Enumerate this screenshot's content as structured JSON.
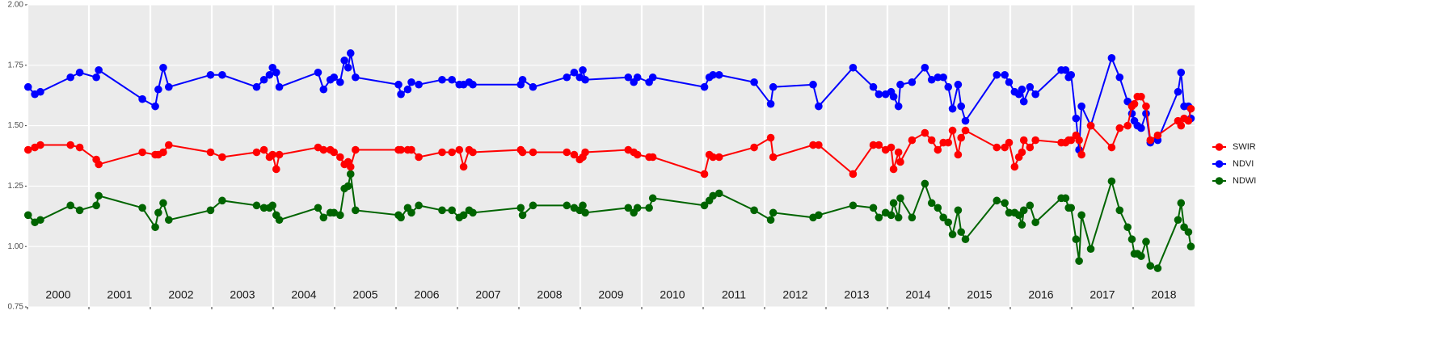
{
  "chart_data": {
    "type": "line",
    "x": [
      2000.01,
      2000.12,
      2000.21,
      2000.7,
      2000.85,
      2001.12,
      2001.16,
      2001.87,
      2002.08,
      2002.13,
      2002.21,
      2002.3,
      2002.98,
      2003.17,
      2003.73,
      2003.85,
      2003.94,
      2003.99,
      2004.05,
      2004.1,
      2004.73,
      2004.82,
      2004.93,
      2004.99,
      2005.09,
      2005.16,
      2005.22,
      2005.26,
      2005.34,
      2006.04,
      2006.08,
      2006.19,
      2006.25,
      2006.37,
      2006.75,
      2006.91,
      2007.03,
      2007.1,
      2007.19,
      2007.25,
      2008.03,
      2008.06,
      2008.23,
      2008.78,
      2008.9,
      2008.99,
      2009.04,
      2009.08,
      2009.78,
      2009.87,
      2009.93,
      2010.12,
      2010.18,
      2011.02,
      2011.1,
      2011.16,
      2011.26,
      2011.83,
      2012.1,
      2012.14,
      2012.79,
      2012.88,
      2013.44,
      2013.77,
      2013.86,
      2013.97,
      2014.06,
      2014.1,
      2014.18,
      2014.21,
      2014.4,
      2014.61,
      2014.72,
      2014.82,
      2014.91,
      2014.99,
      2015.06,
      2015.15,
      2015.2,
      2015.27,
      2015.78,
      2015.91,
      2015.98,
      2016.07,
      2016.14,
      2016.19,
      2016.22,
      2016.32,
      2016.41,
      2016.83,
      2016.9,
      2016.95,
      2016.99,
      2017.07,
      2017.12,
      2017.16,
      2017.31,
      2017.65,
      2017.78,
      2017.91,
      2017.98,
      2018.02,
      2018.07,
      2018.13,
      2018.21,
      2018.28,
      2018.4,
      2018.73,
      2018.78,
      2018.83,
      2018.9,
      2018.94
    ],
    "series": [
      {
        "name": "SWIR",
        "color": "#ff0000",
        "values": [
          1.4,
          1.41,
          1.42,
          1.42,
          1.41,
          1.36,
          1.34,
          1.39,
          1.38,
          1.38,
          1.39,
          1.42,
          1.39,
          1.37,
          1.39,
          1.4,
          1.37,
          1.38,
          1.32,
          1.38,
          1.41,
          1.4,
          1.4,
          1.39,
          1.37,
          1.34,
          1.35,
          1.33,
          1.4,
          1.4,
          1.4,
          1.4,
          1.4,
          1.37,
          1.39,
          1.39,
          1.4,
          1.33,
          1.4,
          1.39,
          1.4,
          1.39,
          1.39,
          1.39,
          1.38,
          1.36,
          1.37,
          1.39,
          1.4,
          1.39,
          1.38,
          1.37,
          1.37,
          1.3,
          1.38,
          1.37,
          1.37,
          1.41,
          1.45,
          1.37,
          1.42,
          1.42,
          1.3,
          1.42,
          1.42,
          1.4,
          1.41,
          1.32,
          1.39,
          1.35,
          1.44,
          1.47,
          1.44,
          1.4,
          1.43,
          1.43,
          1.48,
          1.38,
          1.45,
          1.48,
          1.41,
          1.41,
          1.43,
          1.33,
          1.37,
          1.39,
          1.44,
          1.41,
          1.44,
          1.43,
          1.43,
          1.44,
          1.44,
          1.46,
          1.44,
          1.38,
          1.5,
          1.41,
          1.49,
          1.5,
          1.58,
          1.59,
          1.62,
          1.62,
          1.58,
          1.44,
          1.46,
          1.52,
          1.5,
          1.53,
          1.52,
          1.57
        ]
      },
      {
        "name": "NDVI",
        "color": "#0000ff",
        "values": [
          1.66,
          1.63,
          1.64,
          1.7,
          1.72,
          1.7,
          1.73,
          1.61,
          1.58,
          1.65,
          1.74,
          1.66,
          1.71,
          1.71,
          1.66,
          1.69,
          1.71,
          1.74,
          1.72,
          1.66,
          1.72,
          1.65,
          1.69,
          1.7,
          1.68,
          1.77,
          1.74,
          1.8,
          1.7,
          1.67,
          1.63,
          1.65,
          1.68,
          1.67,
          1.69,
          1.69,
          1.67,
          1.67,
          1.68,
          1.67,
          1.67,
          1.69,
          1.66,
          1.7,
          1.72,
          1.7,
          1.73,
          1.69,
          1.7,
          1.68,
          1.7,
          1.68,
          1.7,
          1.66,
          1.7,
          1.71,
          1.71,
          1.68,
          1.59,
          1.66,
          1.67,
          1.58,
          1.74,
          1.66,
          1.63,
          1.63,
          1.64,
          1.62,
          1.58,
          1.67,
          1.68,
          1.74,
          1.69,
          1.7,
          1.7,
          1.66,
          1.57,
          1.67,
          1.58,
          1.52,
          1.71,
          1.71,
          1.68,
          1.64,
          1.63,
          1.65,
          1.6,
          1.66,
          1.63,
          1.73,
          1.73,
          1.7,
          1.71,
          1.53,
          1.4,
          1.58,
          1.5,
          1.78,
          1.7,
          1.6,
          1.55,
          1.52,
          1.5,
          1.49,
          1.55,
          1.43,
          1.44,
          1.64,
          1.72,
          1.58,
          1.58,
          1.53
        ]
      },
      {
        "name": "NDWI",
        "color": "#006400",
        "values": [
          1.13,
          1.1,
          1.11,
          1.17,
          1.15,
          1.17,
          1.21,
          1.16,
          1.08,
          1.14,
          1.18,
          1.11,
          1.15,
          1.19,
          1.17,
          1.16,
          1.16,
          1.17,
          1.13,
          1.11,
          1.16,
          1.12,
          1.14,
          1.14,
          1.13,
          1.24,
          1.25,
          1.3,
          1.15,
          1.13,
          1.12,
          1.16,
          1.14,
          1.17,
          1.15,
          1.15,
          1.12,
          1.13,
          1.15,
          1.14,
          1.16,
          1.13,
          1.17,
          1.17,
          1.16,
          1.15,
          1.17,
          1.14,
          1.16,
          1.14,
          1.16,
          1.16,
          1.2,
          1.17,
          1.19,
          1.21,
          1.22,
          1.15,
          1.11,
          1.14,
          1.12,
          1.13,
          1.17,
          1.16,
          1.12,
          1.14,
          1.13,
          1.18,
          1.12,
          1.2,
          1.12,
          1.26,
          1.18,
          1.16,
          1.12,
          1.1,
          1.05,
          1.15,
          1.06,
          1.03,
          1.19,
          1.18,
          1.14,
          1.14,
          1.13,
          1.09,
          1.15,
          1.17,
          1.1,
          1.2,
          1.2,
          1.16,
          1.16,
          1.03,
          0.94,
          1.13,
          0.99,
          1.27,
          1.15,
          1.08,
          1.03,
          0.97,
          0.97,
          0.96,
          1.02,
          0.92,
          0.91,
          1.11,
          1.18,
          1.08,
          1.06,
          1.0
        ]
      }
    ],
    "xlim": [
      2000,
      2019
    ],
    "xticks": [
      {
        "value": 2000,
        "label": "2000"
      },
      {
        "value": 2001,
        "label": "2001"
      },
      {
        "value": 2002,
        "label": "2002"
      },
      {
        "value": 2003,
        "label": "2003"
      },
      {
        "value": 2004,
        "label": "2004"
      },
      {
        "value": 2005,
        "label": "2005"
      },
      {
        "value": 2006,
        "label": "2006"
      },
      {
        "value": 2007,
        "label": "2007"
      },
      {
        "value": 2008,
        "label": "2008"
      },
      {
        "value": 2009,
        "label": "2009"
      },
      {
        "value": 2010,
        "label": "2010"
      },
      {
        "value": 2011,
        "label": "2011"
      },
      {
        "value": 2012,
        "label": "2012"
      },
      {
        "value": 2013,
        "label": "2013"
      },
      {
        "value": 2014,
        "label": "2014"
      },
      {
        "value": 2015,
        "label": "2015"
      },
      {
        "value": 2016,
        "label": "2016"
      },
      {
        "value": 2017,
        "label": "2017"
      },
      {
        "value": 2018,
        "label": "2018"
      }
    ],
    "ylim": [
      0.75,
      2.0
    ],
    "yticks": [
      0.75,
      {
        "value": 1.0,
        "label": "1.00"
      },
      1.25,
      {
        "value": 1.5,
        "label": "1.50"
      },
      1.75,
      {
        "value": 2.0,
        "label": "2.00"
      }
    ],
    "grid": true,
    "legend": "right"
  }
}
